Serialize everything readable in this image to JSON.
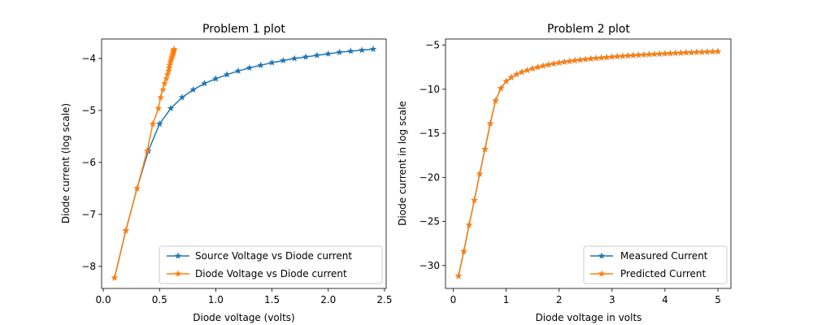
{
  "chart_data": [
    {
      "type": "line",
      "title": "Problem 1 plot",
      "xlabel": "Diode voltage (volts)",
      "ylabel": "Diode current (log scale)",
      "xlim": [
        -0.015,
        2.515
      ],
      "ylim": [
        -8.425,
        -3.625
      ],
      "xticks": [
        0.0,
        0.5,
        1.0,
        1.5,
        2.0,
        2.5
      ],
      "xtick_labels": [
        "0.0",
        "0.5",
        "1.0",
        "1.5",
        "2.0",
        "2.5"
      ],
      "yticks": [
        -8,
        -7,
        -6,
        -5,
        -4
      ],
      "ytick_labels": [
        "−8",
        "−7",
        "−6",
        "−5",
        "−4"
      ],
      "legend_position": "lower-right",
      "series": [
        {
          "name": "Source Voltage vs Diode current",
          "color": "#1f77b4",
          "marker": "star",
          "x": [
            0.1,
            0.2,
            0.3,
            0.4,
            0.5,
            0.6,
            0.7,
            0.8,
            0.9,
            1.0,
            1.1,
            1.2,
            1.3,
            1.4,
            1.5,
            1.6,
            1.7,
            1.8,
            1.9,
            2.0,
            2.1,
            2.2,
            2.3,
            2.4
          ],
          "y": [
            -8.22,
            -7.31,
            -6.5,
            -5.78,
            -5.26,
            -4.96,
            -4.75,
            -4.6,
            -4.48,
            -4.39,
            -4.31,
            -4.24,
            -4.18,
            -4.13,
            -4.08,
            -4.04,
            -4.0,
            -3.97,
            -3.94,
            -3.91,
            -3.88,
            -3.86,
            -3.84,
            -3.82
          ]
        },
        {
          "name": "Diode Voltage vs Diode current",
          "color": "#ff7f0e",
          "marker": "star",
          "x": [
            0.1,
            0.2,
            0.3,
            0.39,
            0.44,
            0.49,
            0.51,
            0.53,
            0.545,
            0.56,
            0.57,
            0.58,
            0.585,
            0.59,
            0.595,
            0.6,
            0.605,
            0.61,
            0.615,
            0.62,
            0.622,
            0.625,
            0.627,
            0.63
          ],
          "y": [
            -8.22,
            -7.31,
            -6.5,
            -5.78,
            -5.26,
            -4.96,
            -4.75,
            -4.6,
            -4.48,
            -4.39,
            -4.31,
            -4.24,
            -4.18,
            -4.13,
            -4.08,
            -4.04,
            -4.0,
            -3.97,
            -3.94,
            -3.91,
            -3.88,
            -3.86,
            -3.84,
            -3.82
          ]
        }
      ]
    },
    {
      "type": "line",
      "title": "Problem 2 plot",
      "xlabel": "Diode voltage in volts",
      "ylabel": "Diode current in log scale",
      "xlim": [
        -0.145,
        5.245
      ],
      "ylim": [
        -32.6,
        -4.3
      ],
      "xticks": [
        0,
        1,
        2,
        3,
        4,
        5
      ],
      "xtick_labels": [
        "0",
        "1",
        "2",
        "3",
        "4",
        "5"
      ],
      "yticks": [
        -30,
        -25,
        -20,
        -15,
        -10,
        -5
      ],
      "ytick_labels": [
        "−30",
        "−25",
        "−20",
        "−15",
        "−10",
        "−5"
      ],
      "legend_position": "lower-right",
      "series": [
        {
          "name": "Measured Current",
          "color": "#1f77b4",
          "marker": "star",
          "x": [
            0.1,
            0.2,
            0.3,
            0.4,
            0.5,
            0.6,
            0.7,
            0.8,
            0.9,
            1.0,
            1.1,
            1.2,
            1.3,
            1.4,
            1.5,
            1.6,
            1.7,
            1.8,
            1.9,
            2.0,
            2.1,
            2.2,
            2.3,
            2.4,
            2.5,
            2.6,
            2.7,
            2.8,
            2.9,
            3.0,
            3.1,
            3.2,
            3.3,
            3.4,
            3.5,
            3.6,
            3.7,
            3.8,
            3.9,
            4.0,
            4.1,
            4.2,
            4.3,
            4.4,
            4.5,
            4.6,
            4.7,
            4.8,
            4.9,
            5.0
          ],
          "y": [
            -31.2,
            -28.4,
            -25.4,
            -22.6,
            -19.6,
            -16.8,
            -13.9,
            -11.3,
            -9.9,
            -9.1,
            -8.65,
            -8.3,
            -8.05,
            -7.85,
            -7.65,
            -7.5,
            -7.35,
            -7.22,
            -7.1,
            -7.0,
            -6.9,
            -6.82,
            -6.74,
            -6.67,
            -6.6,
            -6.54,
            -6.48,
            -6.43,
            -6.38,
            -6.33,
            -6.28,
            -6.24,
            -6.2,
            -6.16,
            -6.12,
            -6.09,
            -6.05,
            -6.02,
            -5.99,
            -5.96,
            -5.93,
            -5.9,
            -5.88,
            -5.85,
            -5.83,
            -5.8,
            -5.78,
            -5.76,
            -5.74,
            -5.72
          ]
        },
        {
          "name": "Predicted Current",
          "color": "#ff7f0e",
          "marker": "star",
          "x": [
            0.1,
            0.2,
            0.3,
            0.4,
            0.5,
            0.6,
            0.7,
            0.8,
            0.9,
            1.0,
            1.1,
            1.2,
            1.3,
            1.4,
            1.5,
            1.6,
            1.7,
            1.8,
            1.9,
            2.0,
            2.1,
            2.2,
            2.3,
            2.4,
            2.5,
            2.6,
            2.7,
            2.8,
            2.9,
            3.0,
            3.1,
            3.2,
            3.3,
            3.4,
            3.5,
            3.6,
            3.7,
            3.8,
            3.9,
            4.0,
            4.1,
            4.2,
            4.3,
            4.4,
            4.5,
            4.6,
            4.7,
            4.8,
            4.9,
            5.0
          ],
          "y": [
            -31.2,
            -28.4,
            -25.4,
            -22.6,
            -19.6,
            -16.8,
            -13.9,
            -11.3,
            -9.9,
            -9.1,
            -8.65,
            -8.3,
            -8.05,
            -7.85,
            -7.65,
            -7.5,
            -7.35,
            -7.22,
            -7.1,
            -7.0,
            -6.9,
            -6.82,
            -6.74,
            -6.67,
            -6.6,
            -6.54,
            -6.48,
            -6.43,
            -6.38,
            -6.33,
            -6.28,
            -6.24,
            -6.2,
            -6.16,
            -6.12,
            -6.09,
            -6.05,
            -6.02,
            -5.99,
            -5.96,
            -5.93,
            -5.9,
            -5.88,
            -5.85,
            -5.83,
            -5.8,
            -5.78,
            -5.76,
            -5.74,
            -5.72
          ]
        }
      ]
    }
  ]
}
